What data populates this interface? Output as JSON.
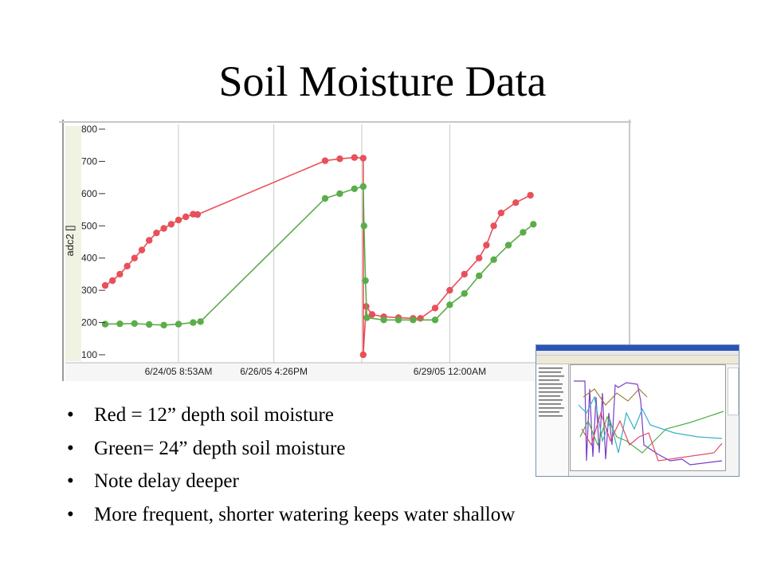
{
  "slide": {
    "title": "Soil Moisture Data",
    "bullets": [
      "Red = 12” depth soil moisture",
      "Green= 24” depth soil moisture",
      "Note delay deeper",
      "More frequent, shorter watering keeps water shallow"
    ]
  },
  "chart_data": {
    "type": "line",
    "ylabel": "adc2 []",
    "xlabel": "",
    "ylim": [
      100,
      800
    ],
    "yticks": [
      100,
      200,
      300,
      400,
      500,
      600,
      700,
      800
    ],
    "x_tick_labels": [
      "6/24/05 8:53AM",
      "6/26/05 4:26PM",
      "6/29/05 12:00AM"
    ],
    "grid": true,
    "series": [
      {
        "color": "#e8505a",
        "points": [
          [
            0.0,
            315
          ],
          [
            0.5,
            330
          ],
          [
            1.0,
            350
          ],
          [
            1.5,
            375
          ],
          [
            2.0,
            400
          ],
          [
            2.5,
            425
          ],
          [
            3.0,
            455
          ],
          [
            3.5,
            478
          ],
          [
            4.0,
            492
          ],
          [
            4.5,
            505
          ],
          [
            5.0,
            518
          ],
          [
            5.5,
            528
          ],
          [
            6.0,
            536
          ],
          [
            6.3,
            535
          ],
          [
            15.0,
            702
          ],
          [
            16.0,
            708
          ],
          [
            17.0,
            712
          ],
          [
            17.6,
            710
          ],
          [
            17.6,
            100
          ],
          [
            17.8,
            250
          ],
          [
            18.2,
            225
          ],
          [
            19.0,
            218
          ],
          [
            20.0,
            215
          ],
          [
            21.0,
            213
          ],
          [
            21.5,
            213
          ],
          [
            22.5,
            245
          ],
          [
            23.5,
            300
          ],
          [
            24.5,
            350
          ],
          [
            25.5,
            400
          ],
          [
            26.0,
            440
          ],
          [
            26.5,
            500
          ],
          [
            27.0,
            540
          ],
          [
            28.0,
            572
          ],
          [
            29.0,
            595
          ]
        ]
      },
      {
        "color": "#5aad4a",
        "points": [
          [
            0.0,
            195
          ],
          [
            1.0,
            196
          ],
          [
            2.0,
            197
          ],
          [
            3.0,
            194
          ],
          [
            4.0,
            192
          ],
          [
            5.0,
            195
          ],
          [
            6.0,
            200
          ],
          [
            6.5,
            203
          ],
          [
            15.0,
            585
          ],
          [
            16.0,
            600
          ],
          [
            17.0,
            615
          ],
          [
            17.6,
            622
          ],
          [
            17.65,
            500
          ],
          [
            17.75,
            330
          ],
          [
            17.85,
            215
          ],
          [
            19.0,
            208
          ],
          [
            20.0,
            208
          ],
          [
            21.0,
            208
          ],
          [
            22.5,
            208
          ],
          [
            23.5,
            255
          ],
          [
            24.5,
            290
          ],
          [
            25.5,
            345
          ],
          [
            26.5,
            395
          ],
          [
            27.5,
            440
          ],
          [
            28.5,
            480
          ],
          [
            29.2,
            505
          ]
        ]
      }
    ],
    "inset_thumbnail": "software-screenshot"
  }
}
